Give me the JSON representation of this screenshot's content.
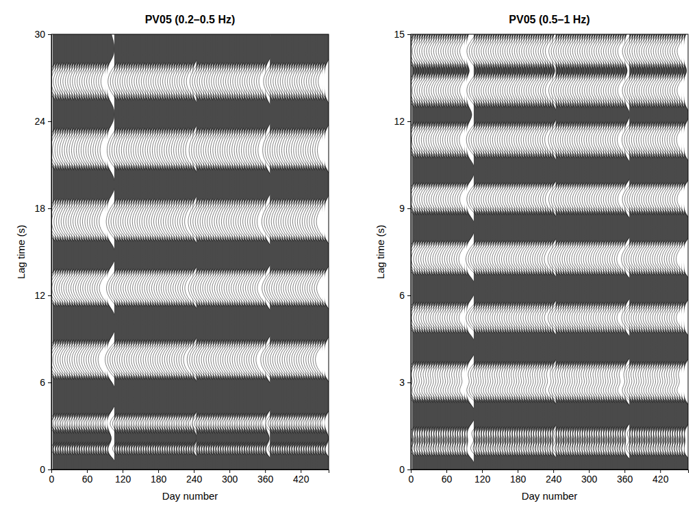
{
  "chart_data": [
    {
      "type": "wiggle",
      "title": "PV05 (0.2–0.5 Hz)",
      "xlabel": "Day number",
      "ylabel": "Lag time (s)",
      "xlim": [
        0,
        467
      ],
      "xticks": [
        0,
        60,
        120,
        180,
        240,
        300,
        360,
        420
      ],
      "ylim": [
        0,
        30
      ],
      "yticks": [
        0,
        6,
        12,
        18,
        24,
        30
      ],
      "days": [
        2,
        6,
        10,
        14,
        18,
        22,
        26,
        30,
        34,
        38,
        42,
        46,
        50,
        54,
        58,
        62,
        66,
        70,
        74,
        78,
        82,
        86,
        90,
        94,
        106,
        110,
        114,
        118,
        122,
        126,
        130,
        134,
        138,
        142,
        146,
        150,
        154,
        158,
        162,
        166,
        170,
        174,
        178,
        182,
        186,
        190,
        194,
        198,
        202,
        206,
        210,
        214,
        218,
        222,
        226,
        230,
        234,
        238,
        244,
        248,
        252,
        256,
        260,
        264,
        268,
        272,
        276,
        280,
        284,
        288,
        292,
        296,
        300,
        304,
        308,
        312,
        316,
        320,
        324,
        328,
        332,
        336,
        340,
        344,
        348,
        352,
        356,
        360,
        368,
        372,
        376,
        380,
        384,
        388,
        392,
        396,
        400,
        404,
        408,
        412,
        416,
        420,
        424,
        428,
        432,
        436,
        440,
        444,
        448,
        452,
        456,
        460
      ],
      "lag": [
        0,
        0.5,
        1,
        1.5,
        2,
        2.5,
        3,
        3.5,
        4,
        4.5,
        5,
        5.5,
        6,
        6.5,
        7,
        7.5,
        8,
        8.5,
        9,
        9.5,
        10,
        10.5,
        11,
        11.5,
        12,
        12.5,
        13,
        13.5,
        14,
        14.5,
        15,
        15.5,
        16,
        16.5,
        17,
        17.5,
        18,
        18.5,
        19,
        19.5,
        20,
        20.5,
        21,
        21.5,
        22,
        22.5,
        23,
        23.5,
        24,
        24.5,
        25,
        25.5,
        26,
        26.5,
        27,
        27.5,
        28,
        28.5,
        29,
        29.5,
        30
      ],
      "amplitude": [
        0.7,
        0.9,
        0.2,
        -0.4,
        0.5,
        0.3,
        -0.5,
        -0.3,
        0.4,
        0.8,
        0.9,
        0.8,
        0.5,
        -0.2,
        -0.7,
        -0.9,
        -0.8,
        -0.3,
        0.3,
        0.7,
        0.9,
        0.8,
        0.5,
        -0.1,
        -0.6,
        -0.8,
        -0.6,
        -0.1,
        0.4,
        0.8,
        0.8,
        0.5,
        -0.1,
        -0.6,
        -0.8,
        -0.7,
        -0.4,
        0.1,
        0.5,
        0.8,
        0.7,
        0.4,
        -0.2,
        -0.6,
        -0.7,
        -0.6,
        -0.3,
        0.2,
        0.6,
        0.7,
        0.6,
        0.2,
        -0.3,
        -0.6,
        -0.6,
        -0.3,
        0.2,
        0.6,
        0.7,
        0.6,
        0.4
      ]
    },
    {
      "type": "wiggle",
      "title": "PV05 (0.5–1 Hz)",
      "xlabel": "Day number",
      "ylabel": "Lag time (s)",
      "xlim": [
        0,
        467
      ],
      "xticks": [
        0,
        60,
        120,
        180,
        240,
        300,
        360,
        420
      ],
      "ylim": [
        0,
        15
      ],
      "yticks": [
        0,
        3,
        6,
        9,
        12,
        15
      ],
      "days": [
        2,
        6,
        10,
        14,
        18,
        22,
        26,
        30,
        34,
        38,
        42,
        46,
        50,
        54,
        58,
        62,
        66,
        70,
        74,
        78,
        82,
        86,
        90,
        94,
        106,
        110,
        114,
        118,
        122,
        126,
        130,
        134,
        138,
        142,
        146,
        150,
        154,
        158,
        162,
        166,
        170,
        174,
        178,
        182,
        186,
        190,
        194,
        198,
        202,
        206,
        210,
        214,
        218,
        222,
        226,
        230,
        234,
        238,
        244,
        248,
        252,
        256,
        260,
        264,
        268,
        272,
        276,
        280,
        284,
        288,
        292,
        296,
        300,
        304,
        308,
        312,
        316,
        320,
        324,
        328,
        332,
        336,
        340,
        344,
        348,
        352,
        356,
        360,
        368,
        372,
        376,
        380,
        384,
        388,
        392,
        396,
        400,
        404,
        408,
        412,
        416,
        420,
        424,
        428,
        432,
        436,
        440,
        444,
        448,
        452,
        456,
        460
      ],
      "lag": [
        0,
        0.25,
        0.5,
        0.75,
        1,
        1.25,
        1.5,
        1.75,
        2,
        2.25,
        2.5,
        2.75,
        3,
        3.25,
        3.5,
        3.75,
        4,
        4.25,
        4.5,
        4.75,
        5,
        5.25,
        5.5,
        5.75,
        6,
        6.25,
        6.5,
        6.75,
        7,
        7.25,
        7.5,
        7.75,
        8,
        8.25,
        8.5,
        8.75,
        9,
        9.25,
        9.5,
        9.75,
        10,
        10.25,
        10.5,
        10.75,
        11,
        11.25,
        11.5,
        11.75,
        12,
        12.25,
        12.5,
        12.75,
        13,
        13.25,
        13.5,
        13.75,
        14,
        14.25,
        14.5,
        14.75,
        15
      ],
      "amplitude": [
        0.7,
        0.8,
        0.1,
        -0.5,
        0.2,
        -0.4,
        0.3,
        0.8,
        0.9,
        0.4,
        -0.4,
        -0.8,
        -0.3,
        -0.6,
        -0.4,
        0.3,
        0.8,
        0.9,
        0.7,
        0.1,
        -0.6,
        -0.8,
        -0.5,
        0.2,
        0.7,
        0.9,
        0.7,
        0.1,
        -0.6,
        -0.8,
        -0.6,
        -0.1,
        0.5,
        0.8,
        0.8,
        0.3,
        -0.4,
        -0.7,
        -0.6,
        -0.1,
        0.5,
        0.8,
        0.7,
        0.2,
        -0.4,
        -0.7,
        -0.7,
        -0.3,
        0.3,
        0.6,
        0.2,
        -0.4,
        -0.7,
        -0.6,
        -0.1,
        0.4,
        -0.2,
        -0.6,
        -0.7,
        -0.3,
        0.2
      ]
    }
  ]
}
